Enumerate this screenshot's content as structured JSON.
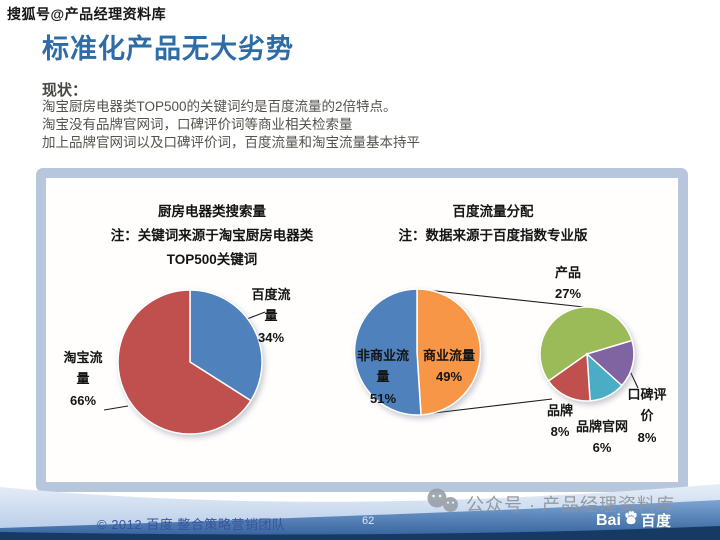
{
  "header": {
    "watermark": "搜狐号@产品经理资料库",
    "title": "标准化产品无大劣势"
  },
  "status": {
    "label": "现状：",
    "lines": [
      "淘宝厨房电器类TOP500的关键词约是百度流量的2倍特点。",
      "淘宝没有品牌官网词，口碑评价词等商业相关检索量",
      "加上品牌官网词以及口碑评价词，百度流量和淘宝流量基本持平"
    ]
  },
  "panel": {
    "left_chart": {
      "title": "厨房电器类搜索量",
      "note_line1": "注：关键词来源于淘宝厨房电器类",
      "note_line2": "TOP500关键词"
    },
    "right_chart": {
      "title": "百度流量分配",
      "note": "注：数据来源于百度指数专业版"
    }
  },
  "labels": {
    "baidu": {
      "name": "百度流量",
      "value": "34%"
    },
    "taobao": {
      "name": "淘宝流量",
      "value": "66%"
    },
    "noncommercial": {
      "name": "非商业流量",
      "value": "51%"
    },
    "commercial": {
      "name": "商业流量",
      "value": "49%"
    },
    "product": {
      "name": "产品",
      "value": "27%"
    },
    "koubei": {
      "name": "口碑评价",
      "value": "8%"
    },
    "brand": {
      "name": "品牌",
      "value": "8%"
    },
    "brand_site": {
      "name": "品牌官网",
      "value": "6%"
    }
  },
  "chart_data": [
    {
      "type": "pie",
      "title": "厨房电器类搜索量",
      "note": "注：关键词来源于淘宝厨房电器类TOP500关键词",
      "labels": [
        "百度流量",
        "淘宝流量"
      ],
      "values": [
        34,
        66
      ],
      "display_values": [
        "34%",
        "66%"
      ],
      "colors": [
        "#4f81bd",
        "#c0504d"
      ],
      "start_angle": 0,
      "legend": "none",
      "data_labels": "outside"
    },
    {
      "type": "pie",
      "title": "百度流量分配",
      "note": "注：数据来源于百度指数专业版",
      "labels": [
        "商业流量",
        "非商业流量"
      ],
      "values": [
        49,
        51
      ],
      "display_values": [
        "49%",
        "51%"
      ],
      "colors": [
        "#f79646",
        "#4f81bd"
      ],
      "start_angle": 0,
      "legend": "none",
      "data_labels": "inside"
    },
    {
      "type": "pie",
      "subtype": "pie-of-pie-detail",
      "parent_slice": "商业流量",
      "labels": [
        "产品",
        "口碑评价",
        "品牌官网",
        "品牌"
      ],
      "values": [
        27,
        8,
        6,
        8
      ],
      "display_values": [
        "27%",
        "8%",
        "6%",
        "8%"
      ],
      "colors": [
        "#9bbb59",
        "#8064a2",
        "#4bacc6",
        "#c0504d"
      ],
      "start_angle": 235,
      "legend": "none",
      "data_labels": "outside"
    }
  ],
  "footer": {
    "copyright": "© 2012 百度 整合策略营销团队",
    "page_number": "62",
    "watermark": "公众号 · 产品经理资料库",
    "logo": {
      "left": "Bai",
      "right": "百度"
    }
  },
  "colors": {
    "title_blue": "#2e6ca6",
    "panel_border": "#b7c6dc",
    "footer_navy": "#163a63",
    "footer_medium": "#2e5d98",
    "footer_light": "#aec7e6"
  }
}
